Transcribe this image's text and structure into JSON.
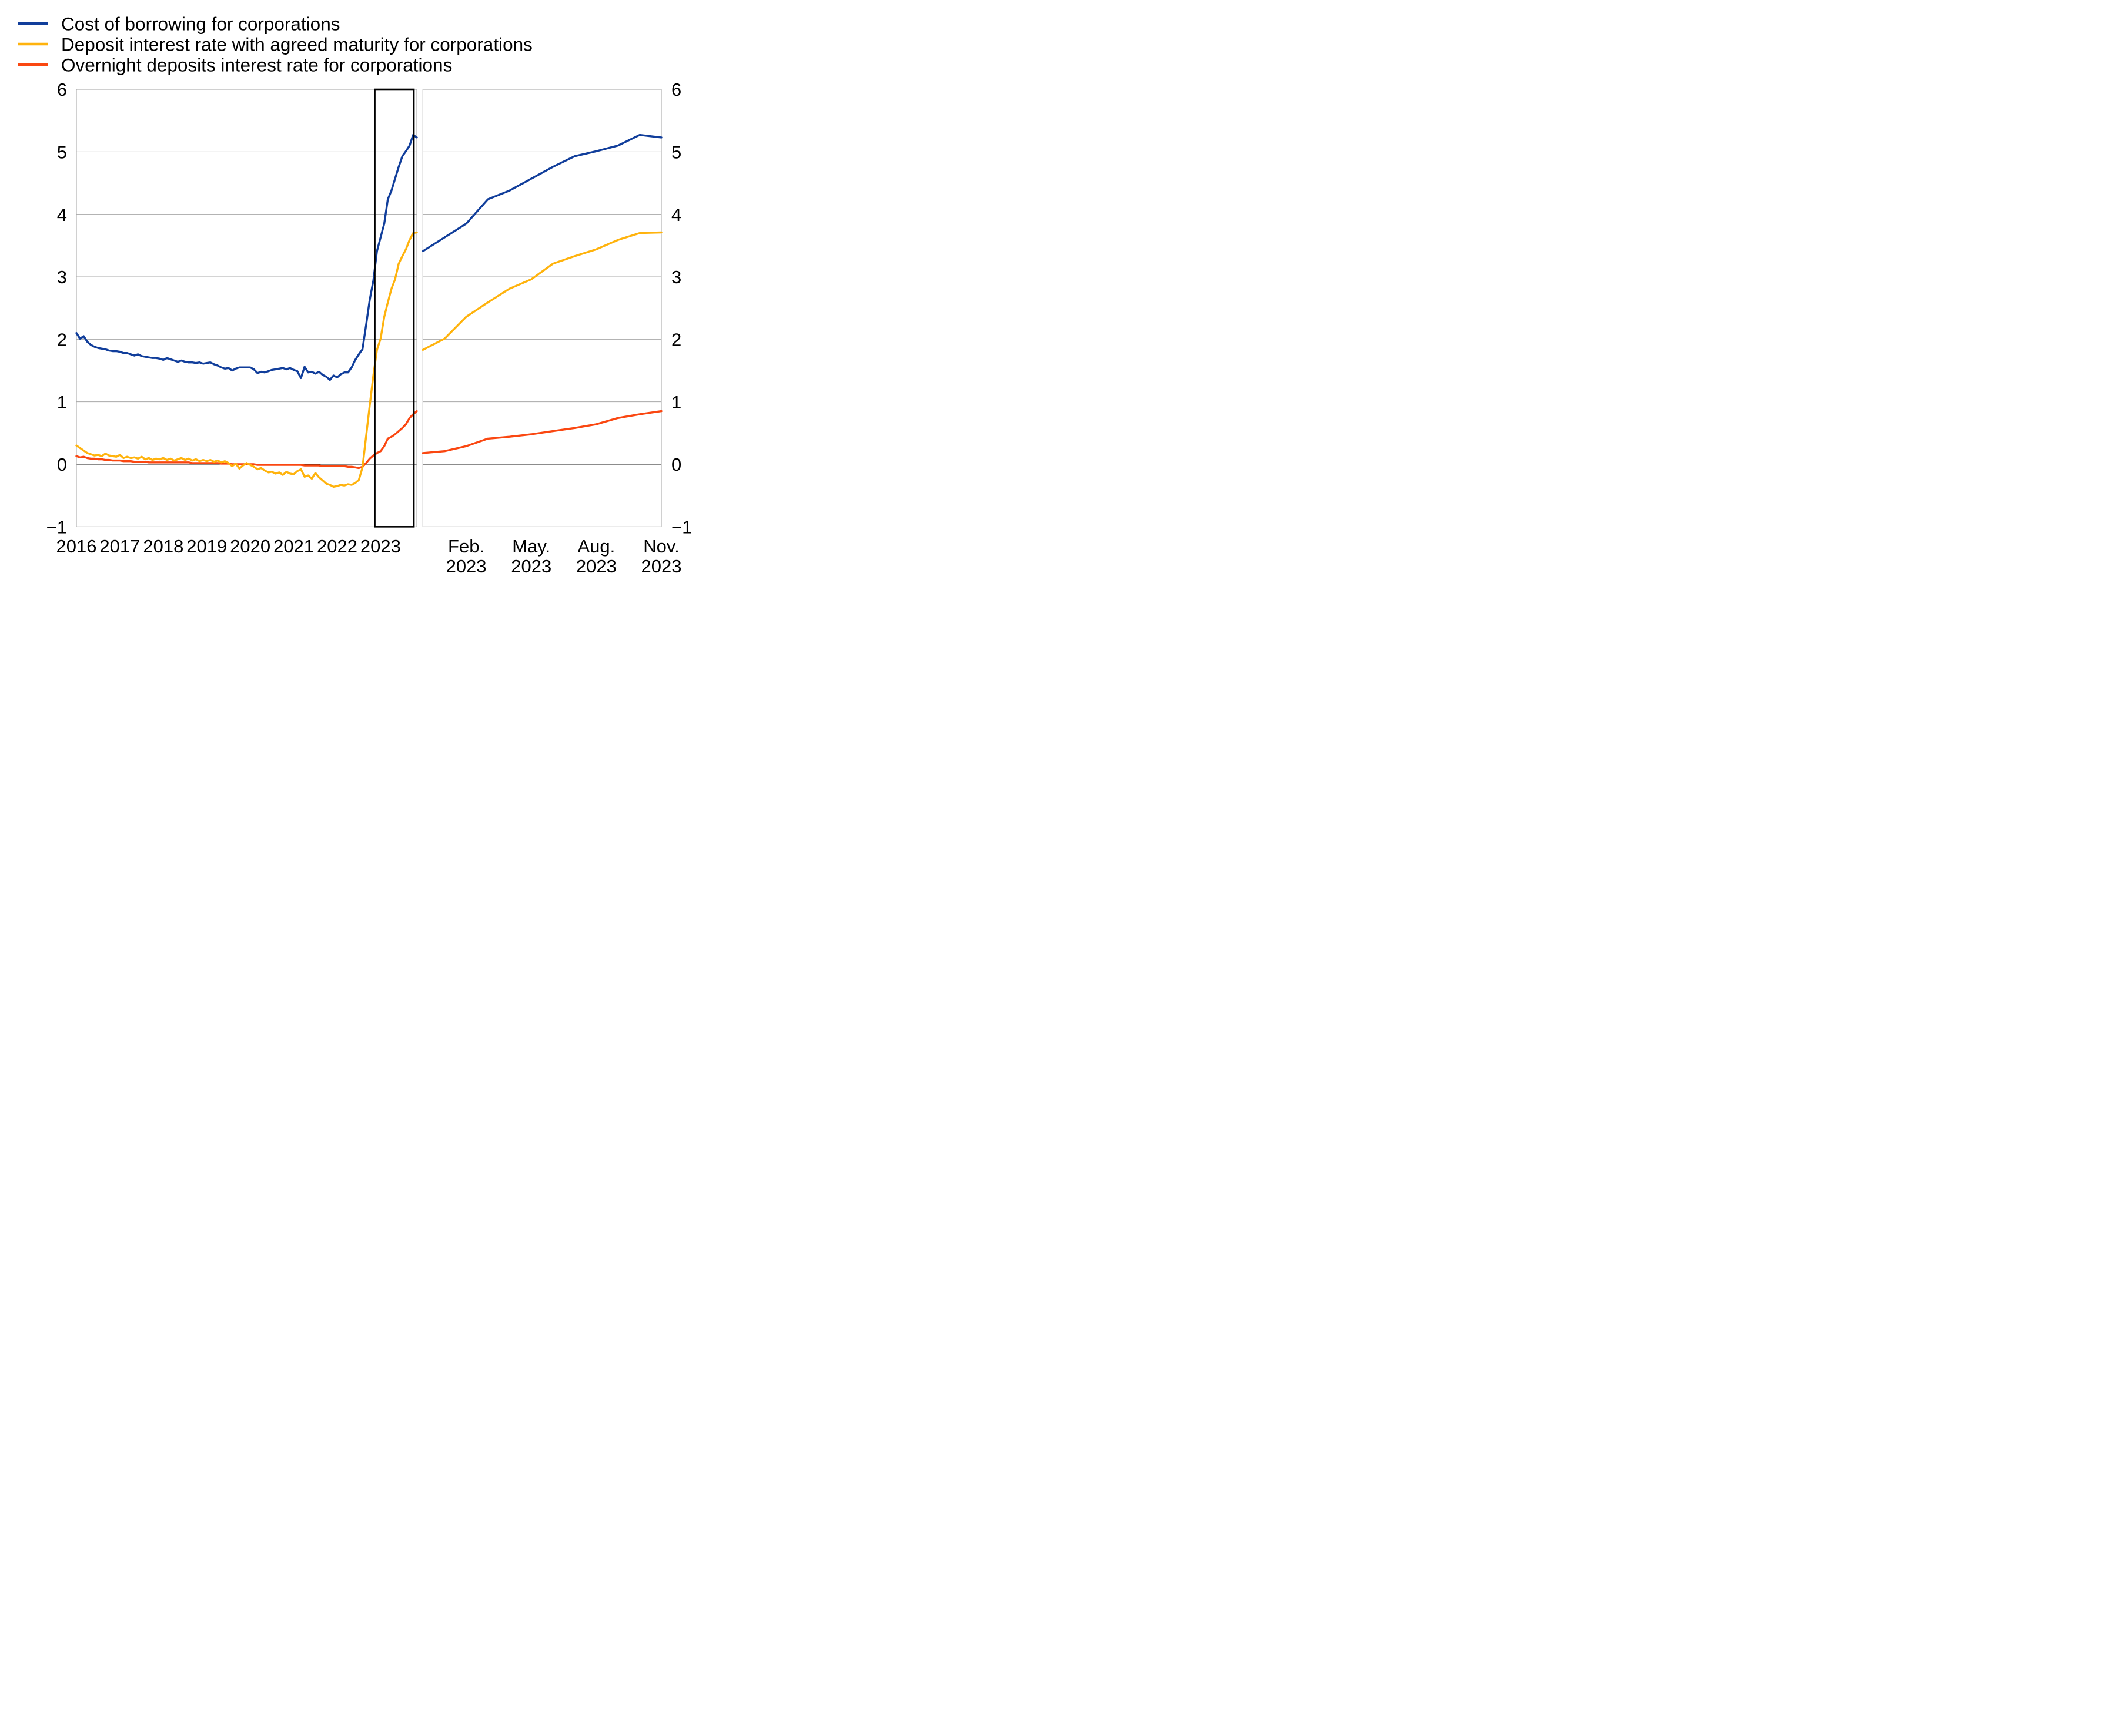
{
  "legend": {
    "items": [
      {
        "label": "Cost of borrowing for corporations",
        "color": "#113e9b"
      },
      {
        "label": "Deposit interest rate with agreed maturity for corporations",
        "color": "#ffb30d"
      },
      {
        "label": "Overnight deposits interest rate for corporations",
        "color": "#fa4711"
      }
    ]
  },
  "colors": {
    "blue": "#113e9b",
    "yellow": "#ffb30d",
    "red": "#fa4711",
    "gridline": "#a8a8a8",
    "frame": "#a8a8a8",
    "zero_line": "#1a1a1a",
    "highlight_box": "#000000",
    "background": "#ffffff",
    "text": "#000000"
  },
  "chart_data": [
    {
      "id": "left-panel",
      "type": "line",
      "frequency": "monthly",
      "x_start": "2016-01",
      "x_end": "2023-11",
      "x_tick_labels": [
        "2016",
        "2017",
        "2018",
        "2019",
        "2020",
        "2021",
        "2022",
        "2023"
      ],
      "x_tick_month_indices": [
        0,
        12,
        24,
        36,
        48,
        60,
        72,
        84
      ],
      "ylim": [
        -1,
        6
      ],
      "y_tick_values": [
        6,
        5,
        4,
        3,
        2,
        1,
        0,
        -1
      ],
      "y_tick_labels": [
        "6",
        "5",
        "4",
        "3",
        "2",
        "1",
        "0",
        "−1"
      ],
      "y_axis_side": "left",
      "grid": "horizontal",
      "zero_line": true,
      "highlight_box": {
        "from_month_index": 82.4,
        "to_month_index": 93.2
      },
      "series": [
        {
          "name": "Cost of borrowing for corporations",
          "color": "#113e9b",
          "values": [
            2.1,
            2.01,
            2.05,
            1.96,
            1.91,
            1.88,
            1.86,
            1.85,
            1.84,
            1.82,
            1.81,
            1.81,
            1.8,
            1.78,
            1.78,
            1.76,
            1.74,
            1.76,
            1.73,
            1.72,
            1.71,
            1.7,
            1.7,
            1.69,
            1.67,
            1.7,
            1.68,
            1.66,
            1.64,
            1.66,
            1.64,
            1.63,
            1.63,
            1.62,
            1.63,
            1.61,
            1.62,
            1.63,
            1.6,
            1.58,
            1.55,
            1.53,
            1.54,
            1.5,
            1.53,
            1.55,
            1.55,
            1.55,
            1.55,
            1.52,
            1.46,
            1.48,
            1.47,
            1.49,
            1.51,
            1.52,
            1.53,
            1.54,
            1.52,
            1.54,
            1.51,
            1.49,
            1.38,
            1.56,
            1.47,
            1.48,
            1.45,
            1.48,
            1.43,
            1.4,
            1.35,
            1.42,
            1.39,
            1.44,
            1.47,
            1.47,
            1.55,
            1.67,
            1.76,
            1.84,
            2.23,
            2.63,
            2.94,
            3.41,
            3.63,
            3.85,
            4.24,
            4.38,
            4.57,
            4.76,
            4.93,
            5.01,
            5.1,
            5.27,
            5.23
          ]
        },
        {
          "name": "Deposit interest rate with agreed maturity for corporations",
          "color": "#ffb30d",
          "values": [
            0.3,
            0.26,
            0.22,
            0.18,
            0.16,
            0.14,
            0.15,
            0.13,
            0.17,
            0.14,
            0.13,
            0.12,
            0.15,
            0.1,
            0.12,
            0.1,
            0.11,
            0.09,
            0.12,
            0.08,
            0.1,
            0.07,
            0.09,
            0.08,
            0.1,
            0.07,
            0.09,
            0.06,
            0.08,
            0.1,
            0.07,
            0.09,
            0.06,
            0.08,
            0.05,
            0.07,
            0.05,
            0.07,
            0.04,
            0.06,
            0.03,
            0.05,
            0.02,
            -0.03,
            0.01,
            -0.07,
            -0.02,
            0.02,
            -0.01,
            -0.04,
            -0.08,
            -0.06,
            -0.1,
            -0.13,
            -0.12,
            -0.15,
            -0.13,
            -0.17,
            -0.12,
            -0.15,
            -0.16,
            -0.11,
            -0.08,
            -0.2,
            -0.18,
            -0.23,
            -0.14,
            -0.21,
            -0.26,
            -0.31,
            -0.33,
            -0.36,
            -0.35,
            -0.33,
            -0.34,
            -0.32,
            -0.33,
            -0.3,
            -0.25,
            -0.05,
            0.45,
            0.94,
            1.42,
            1.83,
            2.01,
            2.36,
            2.59,
            2.81,
            2.96,
            3.21,
            3.33,
            3.44,
            3.59,
            3.7,
            3.71
          ]
        },
        {
          "name": "Overnight deposits interest rate for corporations",
          "color": "#fa4711",
          "values": [
            0.13,
            0.11,
            0.12,
            0.1,
            0.09,
            0.09,
            0.08,
            0.08,
            0.07,
            0.07,
            0.06,
            0.06,
            0.06,
            0.05,
            0.05,
            0.05,
            0.04,
            0.04,
            0.04,
            0.04,
            0.03,
            0.03,
            0.03,
            0.03,
            0.03,
            0.03,
            0.03,
            0.03,
            0.03,
            0.03,
            0.03,
            0.03,
            0.02,
            0.02,
            0.02,
            0.02,
            0.02,
            0.02,
            0.02,
            0.02,
            0.01,
            0.01,
            0.01,
            0.0,
            0.0,
            0.0,
            0.0,
            0.0,
            0.0,
            0.0,
            -0.01,
            -0.01,
            -0.01,
            -0.01,
            -0.01,
            -0.01,
            -0.01,
            -0.01,
            -0.01,
            -0.01,
            -0.01,
            -0.01,
            -0.01,
            -0.02,
            -0.02,
            -0.02,
            -0.02,
            -0.02,
            -0.03,
            -0.03,
            -0.03,
            -0.03,
            -0.03,
            -0.03,
            -0.03,
            -0.04,
            -0.04,
            -0.05,
            -0.06,
            -0.04,
            0.02,
            0.09,
            0.14,
            0.18,
            0.21,
            0.29,
            0.41,
            0.44,
            0.48,
            0.53,
            0.58,
            0.64,
            0.74,
            0.8,
            0.85
          ]
        }
      ]
    },
    {
      "id": "right-panel",
      "type": "line",
      "frequency": "monthly",
      "x_start": "2022-12",
      "x_end": "2023-11",
      "x_tick_labels": [
        [
          "Feb.",
          "2023"
        ],
        [
          "May.",
          "2023"
        ],
        [
          "Aug.",
          "2023"
        ],
        [
          "Nov.",
          "2023"
        ]
      ],
      "x_tick_month_indices": [
        2,
        5,
        8,
        11
      ],
      "ylim": [
        -1,
        6
      ],
      "y_tick_values": [
        6,
        5,
        4,
        3,
        2,
        1,
        0,
        -1
      ],
      "y_tick_labels": [
        "6",
        "5",
        "4",
        "3",
        "2",
        "1",
        "0",
        "−1"
      ],
      "y_axis_side": "right",
      "grid": "horizontal",
      "zero_line": true,
      "series": [
        {
          "name": "Cost of borrowing for corporations",
          "color": "#113e9b",
          "values": [
            3.41,
            3.63,
            3.85,
            4.24,
            4.38,
            4.57,
            4.76,
            4.93,
            5.01,
            5.1,
            5.27,
            5.23
          ]
        },
        {
          "name": "Deposit interest rate with agreed maturity for corporations",
          "color": "#ffb30d",
          "values": [
            1.83,
            2.01,
            2.36,
            2.59,
            2.81,
            2.96,
            3.21,
            3.33,
            3.44,
            3.59,
            3.7,
            3.71
          ]
        },
        {
          "name": "Overnight deposits interest rate for corporations",
          "color": "#fa4711",
          "values": [
            0.18,
            0.21,
            0.29,
            0.41,
            0.44,
            0.48,
            0.53,
            0.58,
            0.64,
            0.74,
            0.8,
            0.85
          ]
        }
      ]
    }
  ]
}
